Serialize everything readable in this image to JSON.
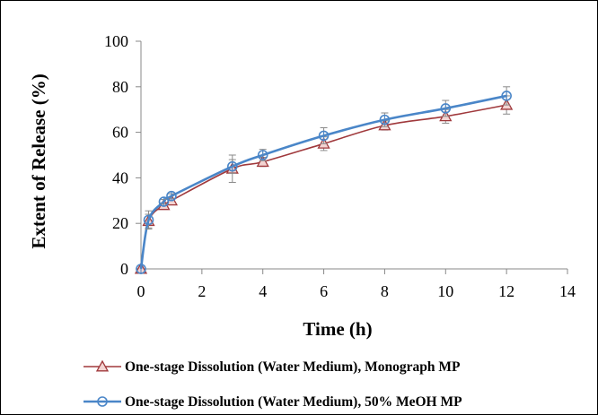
{
  "chart_data": {
    "type": "line",
    "xlabel": "Time (h)",
    "ylabel": "Extent of Release (%)",
    "xlim": [
      0,
      14
    ],
    "ylim": [
      0,
      100
    ],
    "xticks": [
      "0",
      "2",
      "4",
      "6",
      "8",
      "10",
      "12",
      "14"
    ],
    "yticks": [
      "0",
      "20",
      "40",
      "60",
      "80",
      "100"
    ],
    "grid": false,
    "legend_position": "bottom",
    "series": [
      {
        "name": "One-stage Dissolution (Water Medium), Monograph MP",
        "color": "#a0393c",
        "marker": "triangle",
        "x": [
          0,
          0.25,
          0.75,
          1,
          3,
          4,
          6,
          8,
          10,
          12
        ],
        "y": [
          0,
          21,
          28,
          30,
          44,
          47,
          55,
          63,
          67,
          72
        ],
        "error": [
          0,
          3,
          1,
          1,
          6,
          2,
          3,
          2,
          3,
          4
        ]
      },
      {
        "name": "One-stage Dissolution (Water Medium), 50% MeOH MP",
        "color": "#4a86c8",
        "marker": "circle",
        "x": [
          0,
          0.25,
          0.75,
          1,
          3,
          4,
          6,
          8,
          10,
          12
        ],
        "y": [
          0,
          21.5,
          29.5,
          32,
          45,
          50,
          58.5,
          65.5,
          70.5,
          76
        ],
        "error": [
          0,
          4,
          1,
          1,
          3,
          2.5,
          3.5,
          3,
          3.5,
          4
        ]
      }
    ]
  }
}
